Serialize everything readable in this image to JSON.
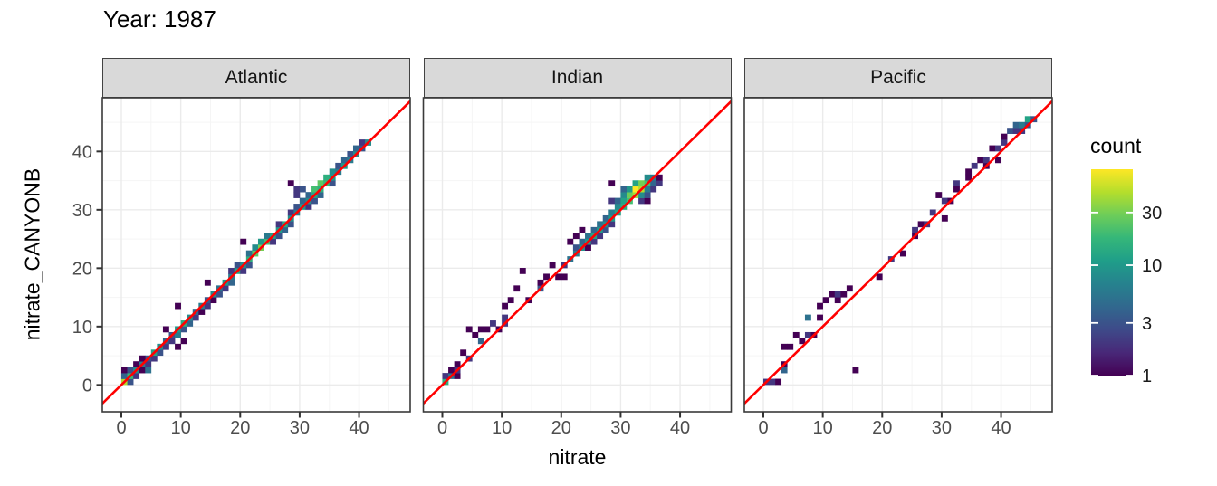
{
  "chart_data": {
    "type": "heatmap",
    "title": "Year: 1987",
    "xlabel": "nitrate",
    "ylabel": "nitrate_CANYONB",
    "x_ticks": [
      0,
      10,
      20,
      30,
      40
    ],
    "y_ticks": [
      0,
      10,
      20,
      30,
      40
    ],
    "minor_ticks": [
      5,
      15,
      25,
      35,
      45
    ],
    "xlim": [
      -3.2,
      48.6
    ],
    "ylim": [
      -4.6,
      49.2
    ],
    "grid": true,
    "bin_size": 1.05,
    "reference_line": {
      "slope": 1,
      "intercept": 0,
      "color": "#FF0000"
    },
    "legend": {
      "title": "count",
      "position": "right",
      "scale": "log10",
      "ticks": [
        1,
        3,
        10,
        30
      ],
      "max": 74,
      "palette": "viridis",
      "colors": [
        "#440154",
        "#482878",
        "#3E4A89",
        "#31688E",
        "#26828E",
        "#1F9E89",
        "#35B779",
        "#6DCD59",
        "#B4DE2C",
        "#FDE725"
      ]
    },
    "facets": [
      {
        "label": "Atlantic",
        "bins": [
          [
            0,
            0,
            45
          ],
          [
            0,
            1,
            4
          ],
          [
            0,
            2,
            1
          ],
          [
            1,
            0,
            3
          ],
          [
            1,
            1,
            18
          ],
          [
            1,
            2,
            3
          ],
          [
            2,
            1,
            2
          ],
          [
            2,
            2,
            8
          ],
          [
            2,
            3,
            1
          ],
          [
            3,
            2,
            1
          ],
          [
            3,
            3,
            6
          ],
          [
            4,
            2,
            5
          ],
          [
            4,
            3,
            2
          ],
          [
            4,
            4,
            3
          ],
          [
            3,
            4,
            1
          ],
          [
            5,
            4,
            2
          ],
          [
            5,
            5,
            12
          ],
          [
            6,
            5,
            3
          ],
          [
            6,
            6,
            8
          ],
          [
            7,
            6,
            2
          ],
          [
            7,
            7,
            4
          ],
          [
            7,
            9,
            1
          ],
          [
            8,
            7,
            2
          ],
          [
            8,
            8,
            3
          ],
          [
            9,
            6,
            1
          ],
          [
            9,
            8,
            6
          ],
          [
            9,
            9,
            10
          ],
          [
            9,
            13,
            1
          ],
          [
            10,
            7,
            1
          ],
          [
            10,
            9,
            3
          ],
          [
            10,
            10,
            14
          ],
          [
            11,
            10,
            4
          ],
          [
            11,
            11,
            8
          ],
          [
            12,
            11,
            2
          ],
          [
            12,
            12,
            4
          ],
          [
            13,
            12,
            1
          ],
          [
            13,
            13,
            6
          ],
          [
            14,
            13,
            2
          ],
          [
            14,
            14,
            3
          ],
          [
            14,
            17,
            1
          ],
          [
            15,
            14,
            1
          ],
          [
            15,
            15,
            8
          ],
          [
            16,
            15,
            3
          ],
          [
            16,
            16,
            5
          ],
          [
            17,
            16,
            2
          ],
          [
            17,
            17,
            10
          ],
          [
            18,
            17,
            4
          ],
          [
            18,
            18,
            6
          ],
          [
            18,
            19,
            2
          ],
          [
            19,
            19,
            12
          ],
          [
            19,
            20,
            3
          ],
          [
            20,
            19,
            2
          ],
          [
            20,
            20,
            8
          ],
          [
            20,
            24,
            1
          ],
          [
            21,
            20,
            3
          ],
          [
            21,
            21,
            15
          ],
          [
            21,
            22,
            5
          ],
          [
            22,
            22,
            25
          ],
          [
            22,
            23,
            8
          ],
          [
            23,
            23,
            30
          ],
          [
            23,
            24,
            10
          ],
          [
            24,
            24,
            20
          ],
          [
            24,
            25,
            6
          ],
          [
            25,
            24,
            2
          ],
          [
            25,
            25,
            12
          ],
          [
            26,
            25,
            3
          ],
          [
            26,
            26,
            10
          ],
          [
            26,
            27,
            2
          ],
          [
            27,
            26,
            4
          ],
          [
            27,
            27,
            14
          ],
          [
            28,
            27,
            3
          ],
          [
            28,
            28,
            8
          ],
          [
            28,
            29,
            2
          ],
          [
            28,
            34,
            1
          ],
          [
            29,
            29,
            6
          ],
          [
            29,
            30,
            3
          ],
          [
            29,
            32,
            2
          ],
          [
            29,
            33,
            2
          ],
          [
            30,
            30,
            10
          ],
          [
            30,
            31,
            4
          ],
          [
            30,
            33,
            3
          ],
          [
            31,
            30,
            2
          ],
          [
            31,
            31,
            8
          ],
          [
            31,
            32,
            4
          ],
          [
            32,
            31,
            3
          ],
          [
            32,
            32,
            12
          ],
          [
            32,
            33,
            20
          ],
          [
            33,
            32,
            4
          ],
          [
            33,
            33,
            15
          ],
          [
            33,
            34,
            25
          ],
          [
            34,
            34,
            18
          ],
          [
            34,
            35,
            15
          ],
          [
            35,
            34,
            3
          ],
          [
            35,
            35,
            10
          ],
          [
            35,
            36,
            8
          ],
          [
            36,
            36,
            6
          ],
          [
            36,
            37,
            3
          ],
          [
            37,
            37,
            10
          ],
          [
            37,
            38,
            4
          ],
          [
            38,
            38,
            6
          ],
          [
            38,
            39,
            3
          ],
          [
            39,
            39,
            8
          ],
          [
            39,
            40,
            4
          ],
          [
            40,
            40,
            3
          ],
          [
            40,
            41,
            2
          ],
          [
            41,
            41,
            8
          ]
        ]
      },
      {
        "label": "Indian",
        "bins": [
          [
            0,
            0,
            15
          ],
          [
            0,
            1,
            2
          ],
          [
            1,
            1,
            5
          ],
          [
            1,
            2,
            1
          ],
          [
            2,
            1,
            1
          ],
          [
            2,
            2,
            2
          ],
          [
            2,
            3,
            1
          ],
          [
            3,
            5,
            1
          ],
          [
            4,
            4,
            2
          ],
          [
            4,
            9,
            1
          ],
          [
            5,
            8,
            1
          ],
          [
            6,
            7,
            4
          ],
          [
            6,
            9,
            1
          ],
          [
            7,
            9,
            1
          ],
          [
            8,
            10,
            2
          ],
          [
            9,
            9,
            1
          ],
          [
            10,
            10,
            2
          ],
          [
            10,
            11,
            2
          ],
          [
            10,
            13,
            1
          ],
          [
            11,
            14,
            1
          ],
          [
            12,
            16,
            1
          ],
          [
            13,
            19,
            1
          ],
          [
            14,
            14,
            1
          ],
          [
            16,
            16,
            3
          ],
          [
            16,
            17,
            1
          ],
          [
            17,
            18,
            1
          ],
          [
            18,
            20,
            1
          ],
          [
            19,
            18,
            1
          ],
          [
            20,
            18,
            1
          ],
          [
            20,
            20,
            2
          ],
          [
            21,
            21,
            5
          ],
          [
            21,
            24,
            1
          ],
          [
            22,
            22,
            6
          ],
          [
            22,
            23,
            3
          ],
          [
            22,
            25,
            1
          ],
          [
            23,
            23,
            8
          ],
          [
            23,
            24,
            4
          ],
          [
            23,
            26,
            1
          ],
          [
            24,
            23,
            1
          ],
          [
            24,
            24,
            10
          ],
          [
            24,
            25,
            5
          ],
          [
            25,
            24,
            2
          ],
          [
            25,
            25,
            12
          ],
          [
            25,
            26,
            4
          ],
          [
            26,
            25,
            2
          ],
          [
            26,
            26,
            10
          ],
          [
            26,
            27,
            5
          ],
          [
            27,
            26,
            3
          ],
          [
            27,
            27,
            8
          ],
          [
            27,
            28,
            4
          ],
          [
            28,
            27,
            2
          ],
          [
            28,
            28,
            10
          ],
          [
            28,
            29,
            6
          ],
          [
            28,
            31,
            2
          ],
          [
            28,
            34,
            1
          ],
          [
            29,
            29,
            12
          ],
          [
            29,
            30,
            8
          ],
          [
            29,
            31,
            4
          ],
          [
            30,
            30,
            15
          ],
          [
            30,
            31,
            12
          ],
          [
            30,
            32,
            8
          ],
          [
            30,
            33,
            4
          ],
          [
            31,
            31,
            20
          ],
          [
            31,
            32,
            28
          ],
          [
            31,
            33,
            10
          ],
          [
            32,
            32,
            40
          ],
          [
            32,
            33,
            74
          ],
          [
            32,
            34,
            12
          ],
          [
            33,
            31,
            2
          ],
          [
            33,
            32,
            8
          ],
          [
            33,
            33,
            45
          ],
          [
            33,
            34,
            30
          ],
          [
            34,
            31,
            1
          ],
          [
            34,
            32,
            3
          ],
          [
            34,
            33,
            6
          ],
          [
            34,
            34,
            20
          ],
          [
            34,
            35,
            8
          ],
          [
            35,
            33,
            2
          ],
          [
            35,
            34,
            4
          ],
          [
            35,
            35,
            6
          ],
          [
            36,
            34,
            2
          ],
          [
            36,
            35,
            1
          ]
        ]
      },
      {
        "label": "Pacific",
        "bins": [
          [
            0,
            0,
            2
          ],
          [
            1,
            0,
            2
          ],
          [
            2,
            0,
            1
          ],
          [
            3,
            2,
            4
          ],
          [
            3,
            3,
            1
          ],
          [
            3,
            6,
            1
          ],
          [
            4,
            6,
            1
          ],
          [
            5,
            8,
            1
          ],
          [
            6,
            7,
            1
          ],
          [
            7,
            8,
            2
          ],
          [
            7,
            11,
            5
          ],
          [
            8,
            8,
            1
          ],
          [
            9,
            11,
            1
          ],
          [
            9,
            13,
            1
          ],
          [
            10,
            14,
            1
          ],
          [
            11,
            15,
            1
          ],
          [
            12,
            14,
            1
          ],
          [
            12,
            15,
            2
          ],
          [
            13,
            15,
            1
          ],
          [
            14,
            16,
            1
          ],
          [
            15,
            2,
            1
          ],
          [
            19,
            18,
            1
          ],
          [
            21,
            21,
            2
          ],
          [
            23,
            22,
            1
          ],
          [
            25,
            25,
            1
          ],
          [
            25,
            26,
            2
          ],
          [
            26,
            27,
            1
          ],
          [
            27,
            27,
            2
          ],
          [
            28,
            29,
            2
          ],
          [
            29,
            32,
            1
          ],
          [
            30,
            28,
            1
          ],
          [
            30,
            31,
            2
          ],
          [
            31,
            31,
            1
          ],
          [
            32,
            33,
            1
          ],
          [
            32,
            34,
            2
          ],
          [
            34,
            35,
            1
          ],
          [
            34,
            36,
            1
          ],
          [
            35,
            37,
            2
          ],
          [
            36,
            38,
            1
          ],
          [
            37,
            37,
            1
          ],
          [
            37,
            38,
            2
          ],
          [
            38,
            40,
            1
          ],
          [
            39,
            38,
            1
          ],
          [
            39,
            40,
            2
          ],
          [
            40,
            41,
            2
          ],
          [
            40,
            42,
            1
          ],
          [
            41,
            43,
            3
          ],
          [
            42,
            43,
            2
          ],
          [
            42,
            44,
            4
          ],
          [
            43,
            43,
            2
          ],
          [
            43,
            44,
            6
          ],
          [
            44,
            44,
            3
          ],
          [
            44,
            45,
            12
          ],
          [
            45,
            45,
            3
          ]
        ]
      }
    ]
  },
  "theme": {
    "background": "#FFFFFF",
    "strip_bg": "#D9D9D9",
    "strip_border": "#424242",
    "panel_border": "#3A3A3A",
    "grid_major": "#EBEBEB",
    "grid_minor": "#F5F5F5",
    "axis_text": "#4D4D4D",
    "tick_color": "#333333",
    "title_color": "#000000"
  }
}
